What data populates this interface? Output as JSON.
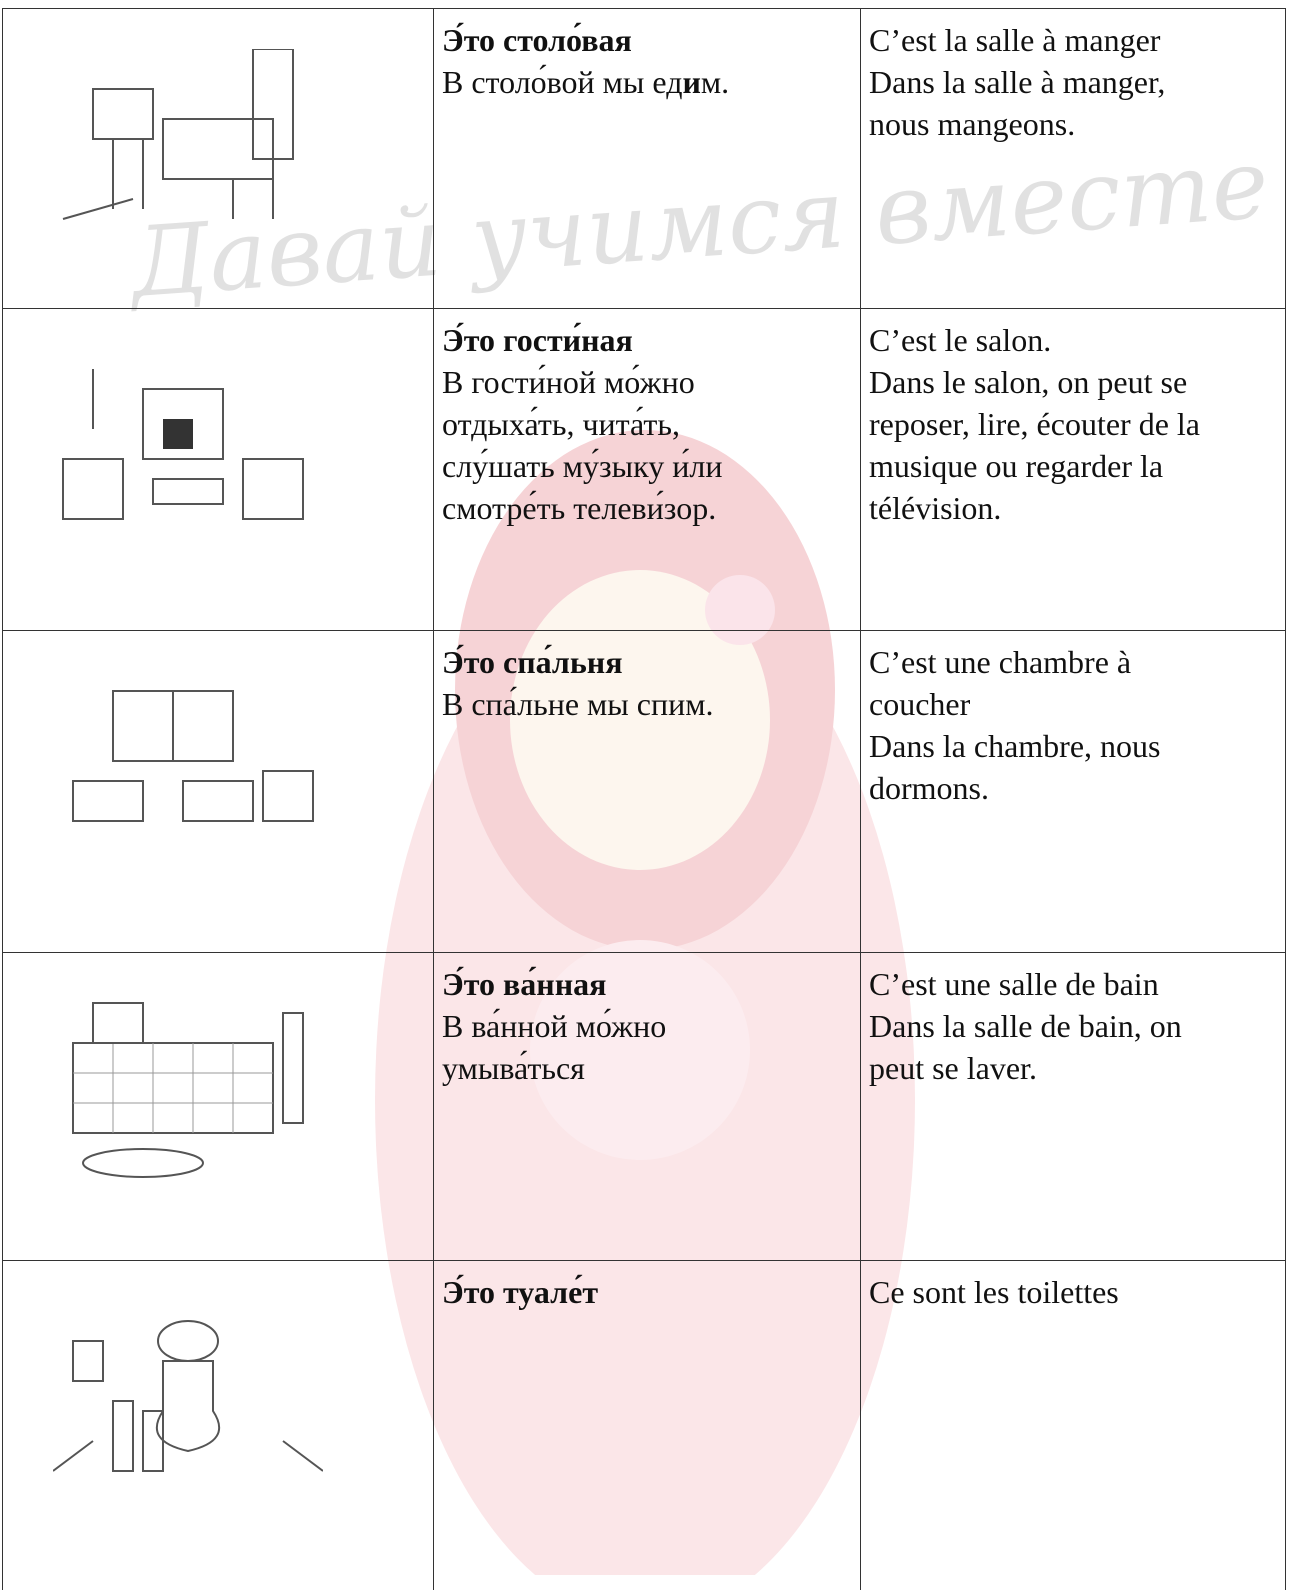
{
  "watermark": "Давай учимся вместе !",
  "rows": [
    {
      "russian_title": "Э́то столо́вая",
      "russian_parts": [
        "В столо́вой мы ед",
        "и",
        "м."
      ],
      "french_lines": [
        "C’est la salle à manger",
        "Dans la salle à manger,",
        "nous mangeons."
      ]
    },
    {
      "russian_title": "Э́то гости́ная",
      "russian_lines": [
        "В гости́ной мо́жно",
        "отдыха́ть, чита́ть,",
        "слу́шать му́зыку и́ли",
        "смотре́ть телеви́зор."
      ],
      "french_lines": [
        "C’est le salon.",
        "Dans le salon, on peut se",
        "reposer, lire, écouter de la",
        "musique ou regarder la",
        "télévision."
      ]
    },
    {
      "russian_title": "Э́то спа́льня",
      "russian_lines": [
        "В спа́льне мы спим."
      ],
      "french_lines": [
        "C’est une chambre à",
        "coucher",
        "Dans la chambre, nous",
        "dormons."
      ]
    },
    {
      "russian_title": "Э́то ва́нная",
      "russian_lines": [
        "В ва́нной мо́жно",
        "умыва́ться"
      ],
      "french_lines": [
        "C’est une salle de bain",
        "Dans la salle de bain, on",
        "peut se laver."
      ]
    },
    {
      "russian_title": "Э́то туале́т",
      "russian_lines": [],
      "french_lines": [
        "Ce sont les toilettes"
      ]
    }
  ]
}
